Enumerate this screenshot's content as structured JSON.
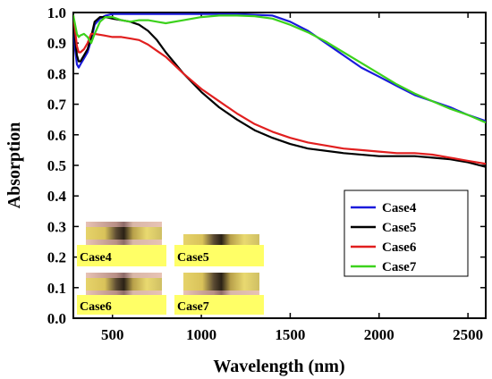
{
  "chart_data": {
    "type": "line",
    "xlabel": "Wavelength (nm)",
    "ylabel": "Absorption",
    "xlim": [
      280,
      2600
    ],
    "ylim": [
      0.0,
      1.0
    ],
    "xticks": [
      500,
      1000,
      1500,
      2000,
      2500
    ],
    "xtick_labels": [
      "500",
      "1000",
      "1500",
      "2000",
      "2500"
    ],
    "yticks": [
      0.0,
      0.1,
      0.2,
      0.3,
      0.4,
      0.5,
      0.6,
      0.7,
      0.8,
      0.9,
      1.0
    ],
    "ytick_labels": [
      "0.0",
      "0.1",
      "0.2",
      "0.3",
      "0.4",
      "0.5",
      "0.6",
      "0.7",
      "0.8",
      "0.9",
      "1.0"
    ],
    "grid": false,
    "legend_position": "right",
    "series": [
      {
        "name": "Case4",
        "color": "#1a1adb",
        "x": [
          280,
          290,
          300,
          310,
          320,
          340,
          360,
          380,
          400,
          430,
          460,
          500,
          600,
          800,
          1000,
          1200,
          1400,
          1500,
          1600,
          1700,
          1800,
          1900,
          2000,
          2100,
          2200,
          2300,
          2400,
          2500,
          2600
        ],
        "y": [
          0.96,
          0.88,
          0.83,
          0.82,
          0.83,
          0.85,
          0.87,
          0.91,
          0.96,
          0.98,
          0.99,
          0.995,
          0.995,
          0.995,
          0.995,
          0.995,
          0.99,
          0.97,
          0.94,
          0.9,
          0.86,
          0.82,
          0.79,
          0.76,
          0.73,
          0.71,
          0.69,
          0.665,
          0.645
        ]
      },
      {
        "name": "Case5",
        "color": "#000000",
        "x": [
          280,
          290,
          300,
          310,
          320,
          340,
          360,
          380,
          400,
          430,
          460,
          500,
          550,
          600,
          650,
          700,
          750,
          800,
          900,
          1000,
          1100,
          1200,
          1300,
          1400,
          1500,
          1600,
          1800,
          2000,
          2200,
          2300,
          2400,
          2500,
          2600
        ],
        "y": [
          0.97,
          0.91,
          0.86,
          0.84,
          0.84,
          0.86,
          0.88,
          0.92,
          0.97,
          0.985,
          0.985,
          0.98,
          0.975,
          0.97,
          0.96,
          0.94,
          0.91,
          0.87,
          0.8,
          0.74,
          0.69,
          0.65,
          0.615,
          0.59,
          0.57,
          0.555,
          0.54,
          0.53,
          0.53,
          0.525,
          0.52,
          0.51,
          0.495
        ]
      },
      {
        "name": "Case6",
        "color": "#e11f1f",
        "x": [
          280,
          290,
          300,
          310,
          320,
          340,
          360,
          380,
          400,
          450,
          500,
          550,
          600,
          650,
          700,
          750,
          800,
          900,
          1000,
          1100,
          1200,
          1300,
          1400,
          1500,
          1600,
          1700,
          1800,
          1900,
          2000,
          2100,
          2200,
          2300,
          2400,
          2500,
          2600
        ],
        "y": [
          0.99,
          0.94,
          0.89,
          0.87,
          0.87,
          0.88,
          0.9,
          0.93,
          0.93,
          0.925,
          0.92,
          0.92,
          0.915,
          0.91,
          0.895,
          0.875,
          0.855,
          0.8,
          0.75,
          0.71,
          0.67,
          0.635,
          0.61,
          0.59,
          0.575,
          0.565,
          0.555,
          0.55,
          0.545,
          0.54,
          0.54,
          0.535,
          0.525,
          0.515,
          0.505
        ]
      },
      {
        "name": "Case7",
        "color": "#3cd21c",
        "x": [
          280,
          290,
          300,
          310,
          320,
          340,
          360,
          380,
          400,
          430,
          460,
          500,
          550,
          600,
          650,
          700,
          750,
          800,
          900,
          1000,
          1100,
          1200,
          1300,
          1400,
          1500,
          1600,
          1700,
          1800,
          1900,
          2000,
          2100,
          2200,
          2300,
          2400,
          2500,
          2600
        ],
        "y": [
          0.99,
          0.96,
          0.93,
          0.92,
          0.925,
          0.93,
          0.92,
          0.9,
          0.93,
          0.97,
          0.985,
          0.985,
          0.975,
          0.97,
          0.975,
          0.975,
          0.97,
          0.965,
          0.975,
          0.985,
          0.99,
          0.99,
          0.988,
          0.98,
          0.96,
          0.935,
          0.905,
          0.87,
          0.835,
          0.8,
          0.765,
          0.735,
          0.71,
          0.685,
          0.665,
          0.64
        ]
      }
    ],
    "inset_labels": [
      "Case4",
      "Case5",
      "Case6",
      "Case7"
    ]
  }
}
